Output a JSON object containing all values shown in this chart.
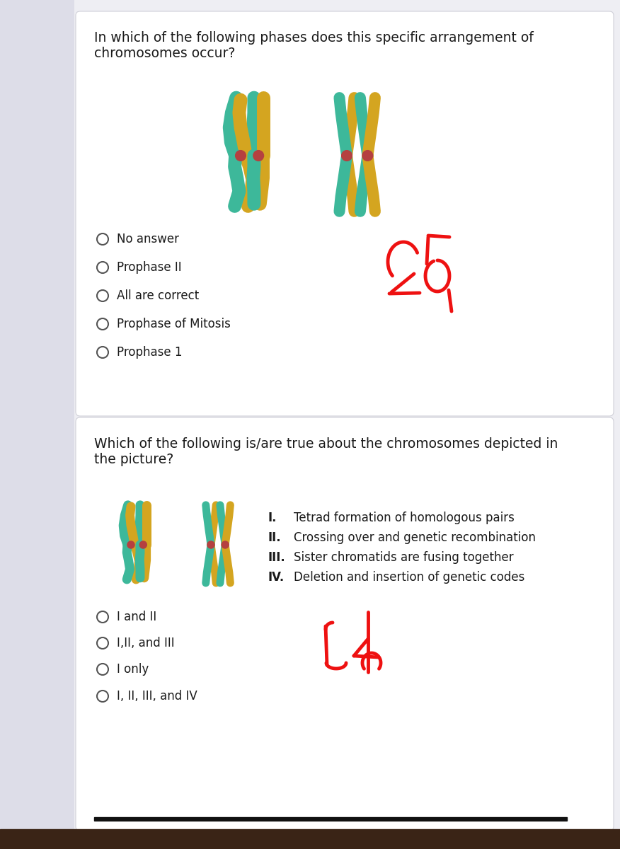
{
  "bg_color": "#eeeef3",
  "card_color": "#ffffff",
  "left_panel_color": "#dddde8",
  "q1_question_line1": "In which of the following phases does this specific arrangement of",
  "q1_question_line2": "chromosomes occur?",
  "q1_options": [
    "No answer",
    "Prophase II",
    "All are correct",
    "Prophase of Mitosis",
    "Prophase 1"
  ],
  "q2_question_line1": "Which of the following is/are true about the chromosomes depicted in",
  "q2_question_line2": "the picture?",
  "q2_items_roman": [
    "I.",
    "II.",
    "III.",
    "IV."
  ],
  "q2_items_text": [
    "Tetrad formation of homologous pairs",
    "Crossing over and genetic recombination",
    "Sister chromatids are fusing together",
    "Deletion and insertion of genetic codes"
  ],
  "q2_options": [
    "I and II",
    "I,II, and III",
    "I only",
    "I, II, III, and IV"
  ],
  "text_color": "#1a1a1a",
  "option_circle_color": "#555555",
  "annotation_color": "#ee1111",
  "teal_color": "#3db89a",
  "gold_color": "#d4a520",
  "centromere_color": "#b54040",
  "font_size_q": 13.5,
  "font_size_opt": 12,
  "font_size_item": 12,
  "bottom_bar_color": "#3a2416"
}
